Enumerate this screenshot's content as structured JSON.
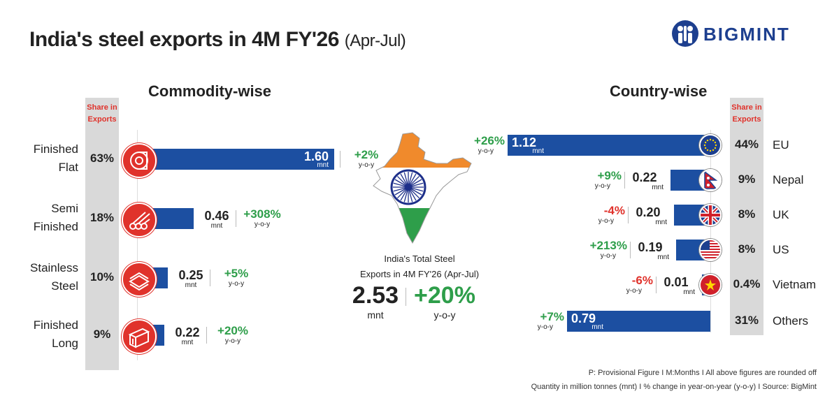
{
  "header": {
    "title": "India's steel exports in 4M FY'26",
    "subtitle": "(Apr-Jul)",
    "brand": "BIGMINT"
  },
  "colors": {
    "bar": "#1c4fa1",
    "positive": "#2e9e4a",
    "negative": "#e0322b",
    "icon_bg": "#e0322b",
    "share_column": "#d9d9d9"
  },
  "chart_data": [
    {
      "type": "bar",
      "orientation": "horizontal",
      "title": "Commodity-wise",
      "share_header": "Share in Exports",
      "unit": "mnt",
      "change_suffix": "y-o-y",
      "categories": [
        "Finished Flat",
        "Semi Finished",
        "Stainless Steel",
        "Finished Long"
      ],
      "category_lines": [
        [
          "Finished",
          "Flat"
        ],
        [
          "Semi",
          "Finished"
        ],
        [
          "Stainless",
          "Steel"
        ],
        [
          "Finished",
          "Long"
        ]
      ],
      "values": [
        1.6,
        0.46,
        0.25,
        0.22
      ],
      "value_labels": [
        "1.60",
        "0.46",
        "0.25",
        "0.22"
      ],
      "share": [
        "63%",
        "18%",
        "10%",
        "9%"
      ],
      "yoy_change": [
        "+2%",
        "+308%",
        "+5%",
        "+20%"
      ],
      "icons": [
        "coil-icon",
        "pipes-icon",
        "sheets-icon",
        "beams-icon"
      ]
    },
    {
      "type": "bar",
      "orientation": "horizontal",
      "title": "Country-wise",
      "share_header": "Share in Exports",
      "unit": "mnt",
      "change_suffix": "y-o-y",
      "categories": [
        "EU",
        "Nepal",
        "UK",
        "US",
        "Vietnam",
        "Others"
      ],
      "values": [
        1.12,
        0.22,
        0.2,
        0.19,
        0.01,
        0.79
      ],
      "value_labels": [
        "1.12",
        "0.22",
        "0.20",
        "0.19",
        "0.01",
        "0.79"
      ],
      "share": [
        "44%",
        "9%",
        "8%",
        "8%",
        "0.4%",
        "31%"
      ],
      "yoy_change": [
        "+26%",
        "+9%",
        "-4%",
        "+213%",
        "-6%",
        "+7%"
      ],
      "icons": [
        "eu-flag-icon",
        "nepal-flag-icon",
        "uk-flag-icon",
        "us-flag-icon",
        "vietnam-flag-icon",
        ""
      ]
    }
  ],
  "total": {
    "label_line1": "India's Total Steel",
    "label_line2": "Exports in 4M FY'26 (Apr-Jul)",
    "value": "2.53",
    "unit": "mnt",
    "change": "+20%",
    "change_suffix": "y-o-y"
  },
  "footer": {
    "line1": "P: Provisional Figure  I  M:Months I All above figures are rounded off",
    "line2": "Quantity in million tonnes (mnt)  I  % change in year-on-year (y-o-y)  I  Source: BigMint"
  }
}
